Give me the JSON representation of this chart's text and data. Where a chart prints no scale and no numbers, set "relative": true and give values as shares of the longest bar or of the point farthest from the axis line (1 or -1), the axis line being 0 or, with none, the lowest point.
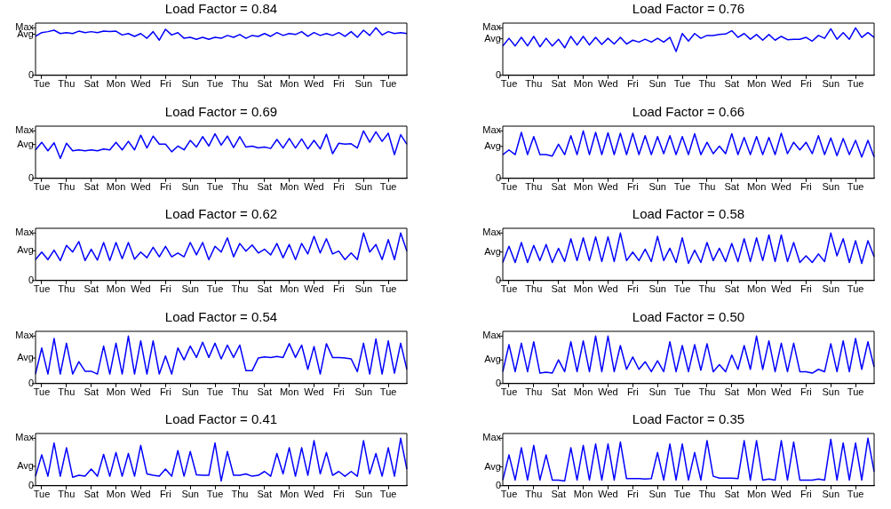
{
  "chart_data": [
    {
      "type": "line",
      "title": "Load Factor = 0.84",
      "color": "#0000ff",
      "relative": true,
      "legend": false,
      "annotations": [
        "0",
        "Avg",
        "Max"
      ],
      "categories": [
        null,
        "Tue",
        null,
        null,
        null,
        "Thu",
        null,
        null,
        null,
        "Sat",
        null,
        null,
        null,
        "Mon",
        null,
        null,
        null,
        "Wed",
        null,
        null,
        null,
        "Fri",
        null,
        null,
        null,
        "Sun",
        null,
        null,
        null,
        "Tue",
        null,
        null,
        null,
        "Thu",
        null,
        null,
        null,
        "Sat",
        null,
        null,
        null,
        "Mon",
        null,
        null,
        null,
        "Wed",
        null,
        null,
        null,
        "Fri",
        null,
        null,
        null,
        "Sun",
        null,
        null,
        null,
        "Tue",
        null,
        null,
        null
      ],
      "values": [
        0.82,
        0.9,
        0.92,
        0.95,
        0.88,
        0.9,
        0.88,
        0.93,
        0.9,
        0.92,
        0.9,
        0.93,
        0.92,
        0.93,
        0.85,
        0.88,
        0.82,
        0.88,
        0.78,
        0.92,
        0.74,
        0.97,
        0.85,
        0.9,
        0.78,
        0.8,
        0.76,
        0.8,
        0.76,
        0.8,
        0.78,
        0.84,
        0.8,
        0.86,
        0.78,
        0.84,
        0.82,
        0.88,
        0.82,
        0.9,
        0.84,
        0.88,
        0.86,
        0.92,
        0.82,
        0.9,
        0.84,
        0.88,
        0.84,
        0.9,
        0.82,
        0.92,
        0.8,
        0.95,
        0.84,
        1.0,
        0.85,
        0.92,
        0.88,
        0.9,
        0.88
      ]
    },
    {
      "type": "line",
      "title": "Load Factor = 0.76",
      "color": "#0000ff",
      "relative": true,
      "legend": false,
      "annotations": [
        "0",
        "Avg",
        "Max"
      ],
      "categories": [
        null,
        "Tue",
        null,
        null,
        null,
        "Thu",
        null,
        null,
        null,
        "Sat",
        null,
        null,
        null,
        "Mon",
        null,
        null,
        null,
        "Wed",
        null,
        null,
        null,
        "Fri",
        null,
        null,
        null,
        "Sun",
        null,
        null,
        null,
        "Tue",
        null,
        null,
        null,
        "Thu",
        null,
        null,
        null,
        "Sat",
        null,
        null,
        null,
        "Mon",
        null,
        null,
        null,
        "Wed",
        null,
        null,
        null,
        "Fri",
        null,
        null,
        null,
        "Sun",
        null,
        null,
        null,
        "Tue",
        null,
        null,
        null
      ],
      "values": [
        0.62,
        0.78,
        0.62,
        0.8,
        0.62,
        0.82,
        0.6,
        0.78,
        0.62,
        0.76,
        0.58,
        0.82,
        0.64,
        0.82,
        0.64,
        0.8,
        0.65,
        0.78,
        0.66,
        0.8,
        0.66,
        0.74,
        0.7,
        0.76,
        0.7,
        0.78,
        0.7,
        0.8,
        0.5,
        0.88,
        0.72,
        0.88,
        0.78,
        0.84,
        0.84,
        0.86,
        0.87,
        0.94,
        0.8,
        0.88,
        0.76,
        0.86,
        0.74,
        0.86,
        0.74,
        0.82,
        0.75,
        0.76,
        0.76,
        0.8,
        0.72,
        0.84,
        0.78,
        0.98,
        0.76,
        0.9,
        0.76,
        1.0,
        0.8,
        0.9,
        0.8
      ]
    },
    {
      "type": "line",
      "title": "Load Factor = 0.69",
      "color": "#0000ff",
      "relative": true,
      "legend": false,
      "annotations": [
        "0",
        "Avg",
        "Max"
      ],
      "categories": [
        null,
        "Tue",
        null,
        null,
        null,
        "Thu",
        null,
        null,
        null,
        "Sat",
        null,
        null,
        null,
        "Mon",
        null,
        null,
        null,
        "Wed",
        null,
        null,
        null,
        "Fri",
        null,
        null,
        null,
        "Sun",
        null,
        null,
        null,
        "Tue",
        null,
        null,
        null,
        "Thu",
        null,
        null,
        null,
        "Sat",
        null,
        null,
        null,
        "Mon",
        null,
        null,
        null,
        "Wed",
        null,
        null,
        null,
        "Fri",
        null,
        null,
        null,
        "Sun",
        null,
        null,
        null,
        "Tue",
        null,
        null,
        null
      ],
      "values": [
        0.6,
        0.76,
        0.58,
        0.75,
        0.42,
        0.74,
        0.58,
        0.6,
        0.58,
        0.6,
        0.58,
        0.62,
        0.6,
        0.76,
        0.6,
        0.78,
        0.6,
        0.91,
        0.64,
        0.89,
        0.72,
        0.72,
        0.56,
        0.68,
        0.6,
        0.8,
        0.66,
        0.88,
        0.68,
        0.94,
        0.7,
        0.89,
        0.65,
        0.88,
        0.66,
        0.68,
        0.64,
        0.66,
        0.63,
        0.82,
        0.64,
        0.84,
        0.64,
        0.83,
        0.62,
        0.8,
        0.62,
        0.93,
        0.52,
        0.74,
        0.72,
        0.73,
        0.64,
        1.0,
        0.76,
        0.98,
        0.78,
        0.95,
        0.5,
        0.92,
        0.72
      ]
    },
    {
      "type": "line",
      "title": "Load Factor = 0.66",
      "color": "#0000ff",
      "relative": true,
      "legend": false,
      "annotations": [
        "0",
        "Avg",
        "Max"
      ],
      "categories": [
        null,
        "Tue",
        null,
        null,
        null,
        "Thu",
        null,
        null,
        null,
        "Sat",
        null,
        null,
        null,
        "Mon",
        null,
        null,
        null,
        "Wed",
        null,
        null,
        null,
        "Fri",
        null,
        null,
        null,
        "Sun",
        null,
        null,
        null,
        "Tue",
        null,
        null,
        null,
        "Thu",
        null,
        null,
        null,
        "Sat",
        null,
        null,
        null,
        "Mon",
        null,
        null,
        null,
        "Wed",
        null,
        null,
        null,
        "Fri",
        null,
        null,
        null,
        "Sun",
        null,
        null,
        null,
        "Tue",
        null,
        null,
        null
      ],
      "values": [
        0.5,
        0.6,
        0.5,
        0.97,
        0.5,
        0.88,
        0.5,
        0.5,
        0.47,
        0.72,
        0.5,
        0.9,
        0.5,
        1.0,
        0.5,
        0.97,
        0.5,
        0.96,
        0.5,
        0.95,
        0.5,
        0.95,
        0.5,
        0.9,
        0.5,
        0.88,
        0.52,
        0.9,
        0.5,
        0.88,
        0.5,
        0.94,
        0.5,
        0.76,
        0.52,
        0.68,
        0.52,
        0.94,
        0.5,
        0.86,
        0.5,
        0.88,
        0.5,
        0.86,
        0.5,
        0.95,
        0.52,
        0.76,
        0.6,
        0.76,
        0.52,
        0.9,
        0.5,
        0.85,
        0.48,
        0.84,
        0.5,
        0.8,
        0.45,
        0.8,
        0.45
      ]
    },
    {
      "type": "line",
      "title": "Load Factor = 0.62",
      "color": "#0000ff",
      "relative": true,
      "legend": false,
      "annotations": [
        "0",
        "Avg",
        "Max"
      ],
      "categories": [
        null,
        "Tue",
        null,
        null,
        null,
        "Thu",
        null,
        null,
        null,
        "Sat",
        null,
        null,
        null,
        "Mon",
        null,
        null,
        null,
        "Wed",
        null,
        null,
        null,
        "Fri",
        null,
        null,
        null,
        "Sun",
        null,
        null,
        null,
        "Tue",
        null,
        null,
        null,
        "Thu",
        null,
        null,
        null,
        "Sat",
        null,
        null,
        null,
        "Mon",
        null,
        null,
        null,
        "Wed",
        null,
        null,
        null,
        "Fri",
        null,
        null,
        null,
        "Sun",
        null,
        null,
        null,
        "Tue",
        null,
        null,
        null
      ],
      "values": [
        0.44,
        0.6,
        0.44,
        0.64,
        0.42,
        0.74,
        0.6,
        0.82,
        0.42,
        0.66,
        0.43,
        0.8,
        0.42,
        0.8,
        0.46,
        0.8,
        0.45,
        0.6,
        0.48,
        0.7,
        0.5,
        0.72,
        0.5,
        0.58,
        0.5,
        0.8,
        0.54,
        0.8,
        0.44,
        0.72,
        0.6,
        0.9,
        0.5,
        0.78,
        0.62,
        0.75,
        0.58,
        0.66,
        0.54,
        0.78,
        0.48,
        0.76,
        0.44,
        0.78,
        0.56,
        0.93,
        0.58,
        0.88,
        0.56,
        0.62,
        0.44,
        0.58,
        0.44,
        1.0,
        0.6,
        0.76,
        0.44,
        0.86,
        0.44,
        1.0,
        0.62
      ]
    },
    {
      "type": "line",
      "title": "Load Factor = 0.58",
      "color": "#0000ff",
      "relative": true,
      "legend": false,
      "annotations": [
        "0",
        "Avg",
        "Max"
      ],
      "categories": [
        null,
        "Tue",
        null,
        null,
        null,
        "Thu",
        null,
        null,
        null,
        "Sat",
        null,
        null,
        null,
        "Mon",
        null,
        null,
        null,
        "Wed",
        null,
        null,
        null,
        "Fri",
        null,
        null,
        null,
        "Sun",
        null,
        null,
        null,
        "Tue",
        null,
        null,
        null,
        "Thu",
        null,
        null,
        null,
        "Sat",
        null,
        null,
        null,
        "Mon",
        null,
        null,
        null,
        "Wed",
        null,
        null,
        null,
        "Fri",
        null,
        null,
        null,
        "Sun",
        null,
        null,
        null,
        "Tue",
        null,
        null,
        null
      ],
      "values": [
        0.38,
        0.72,
        0.38,
        0.8,
        0.38,
        0.74,
        0.42,
        0.76,
        0.38,
        0.68,
        0.4,
        0.88,
        0.42,
        0.9,
        0.42,
        0.92,
        0.4,
        0.92,
        0.4,
        1.0,
        0.42,
        0.6,
        0.42,
        0.66,
        0.4,
        0.93,
        0.42,
        0.68,
        0.38,
        0.9,
        0.36,
        0.64,
        0.38,
        0.8,
        0.42,
        0.68,
        0.4,
        0.78,
        0.4,
        0.88,
        0.4,
        0.9,
        0.42,
        0.96,
        0.4,
        0.96,
        0.4,
        0.8,
        0.38,
        0.52,
        0.38,
        0.56,
        0.4,
        1.0,
        0.52,
        0.88,
        0.38,
        0.84,
        0.36,
        0.84,
        0.5
      ]
    },
    {
      "type": "line",
      "title": "Load Factor = 0.54",
      "color": "#0000ff",
      "relative": true,
      "legend": false,
      "annotations": [
        "0",
        "Avg",
        "Max"
      ],
      "categories": [
        null,
        "Tue",
        null,
        null,
        null,
        "Thu",
        null,
        null,
        null,
        "Sat",
        null,
        null,
        null,
        "Mon",
        null,
        null,
        null,
        "Wed",
        null,
        null,
        null,
        "Fri",
        null,
        null,
        null,
        "Sun",
        null,
        null,
        null,
        "Tue",
        null,
        null,
        null,
        "Thu",
        null,
        null,
        null,
        "Sat",
        null,
        null,
        null,
        "Mon",
        null,
        null,
        null,
        "Wed",
        null,
        null,
        null,
        "Fri",
        null,
        null,
        null,
        "Sun",
        null,
        null,
        null,
        "Tue",
        null,
        null,
        null
      ],
      "values": [
        0.2,
        0.75,
        0.2,
        0.95,
        0.2,
        0.85,
        0.2,
        0.46,
        0.26,
        0.26,
        0.2,
        0.79,
        0.2,
        0.85,
        0.2,
        1.0,
        0.2,
        0.9,
        0.2,
        0.9,
        0.2,
        0.58,
        0.2,
        0.75,
        0.5,
        0.79,
        0.55,
        0.87,
        0.55,
        0.85,
        0.52,
        0.81,
        0.55,
        0.81,
        0.27,
        0.27,
        0.54,
        0.56,
        0.55,
        0.57,
        0.55,
        0.84,
        0.55,
        0.81,
        0.3,
        0.78,
        0.2,
        0.84,
        0.55,
        0.55,
        0.54,
        0.52,
        0.25,
        0.85,
        0.2,
        0.94,
        0.2,
        0.9,
        0.22,
        0.85,
        0.3
      ]
    },
    {
      "type": "line",
      "title": "Load Factor = 0.50",
      "color": "#0000ff",
      "relative": true,
      "legend": false,
      "annotations": [
        "0",
        "Avg",
        "Max"
      ],
      "categories": [
        null,
        "Tue",
        null,
        null,
        null,
        "Thu",
        null,
        null,
        null,
        "Sat",
        null,
        null,
        null,
        "Mon",
        null,
        null,
        null,
        "Wed",
        null,
        null,
        null,
        "Fri",
        null,
        null,
        null,
        "Sun",
        null,
        null,
        null,
        "Tue",
        null,
        null,
        null,
        "Thu",
        null,
        null,
        null,
        "Sat",
        null,
        null,
        null,
        "Mon",
        null,
        null,
        null,
        "Wed",
        null,
        null,
        null,
        "Fri",
        null,
        null,
        null,
        "Sun",
        null,
        null,
        null,
        "Tue",
        null,
        null,
        null
      ],
      "values": [
        0.25,
        0.82,
        0.25,
        0.85,
        0.25,
        0.88,
        0.22,
        0.24,
        0.22,
        0.5,
        0.25,
        0.88,
        0.25,
        0.9,
        0.25,
        1.0,
        0.25,
        1.0,
        0.25,
        0.8,
        0.3,
        0.56,
        0.3,
        0.46,
        0.25,
        0.48,
        0.25,
        0.88,
        0.25,
        0.8,
        0.25,
        0.82,
        0.28,
        0.84,
        0.25,
        0.4,
        0.25,
        0.6,
        0.3,
        0.8,
        0.3,
        1.0,
        0.3,
        0.9,
        0.25,
        0.85,
        0.25,
        0.85,
        0.25,
        0.25,
        0.22,
        0.3,
        0.25,
        0.84,
        0.25,
        0.9,
        0.25,
        0.95,
        0.3,
        0.88,
        0.35
      ]
    },
    {
      "type": "line",
      "title": "Load Factor = 0.41",
      "color": "#0000ff",
      "relative": true,
      "legend": false,
      "annotations": [
        "0",
        "Avg",
        "Max"
      ],
      "categories": [
        null,
        "Tue",
        null,
        null,
        null,
        "Thu",
        null,
        null,
        null,
        "Sat",
        null,
        null,
        null,
        "Mon",
        null,
        null,
        null,
        "Wed",
        null,
        null,
        null,
        "Fri",
        null,
        null,
        null,
        "Sun",
        null,
        null,
        null,
        "Tue",
        null,
        null,
        null,
        "Thu",
        null,
        null,
        null,
        "Sat",
        null,
        null,
        null,
        "Mon",
        null,
        null,
        null,
        "Wed",
        null,
        null,
        null,
        "Fri",
        null,
        null,
        null,
        "Sun",
        null,
        null,
        null,
        "Tue",
        null,
        null,
        null
      ],
      "values": [
        0.2,
        0.65,
        0.2,
        0.9,
        0.2,
        0.8,
        0.18,
        0.22,
        0.2,
        0.35,
        0.2,
        0.66,
        0.2,
        0.7,
        0.2,
        0.68,
        0.2,
        0.85,
        0.25,
        0.22,
        0.2,
        0.35,
        0.2,
        0.74,
        0.2,
        0.72,
        0.23,
        0.22,
        0.22,
        0.9,
        0.1,
        0.72,
        0.22,
        0.22,
        0.25,
        0.2,
        0.22,
        0.3,
        0.2,
        0.68,
        0.25,
        0.8,
        0.2,
        0.8,
        0.22,
        0.95,
        0.25,
        0.7,
        0.22,
        0.3,
        0.2,
        0.3,
        0.2,
        0.95,
        0.25,
        0.68,
        0.2,
        0.8,
        0.2,
        1.0,
        0.35
      ]
    },
    {
      "type": "line",
      "title": "Load Factor = 0.35",
      "color": "#0000ff",
      "relative": true,
      "legend": false,
      "annotations": [
        "0",
        "Avg",
        "Max"
      ],
      "categories": [
        null,
        "Tue",
        null,
        null,
        null,
        "Thu",
        null,
        null,
        null,
        "Sat",
        null,
        null,
        null,
        "Mon",
        null,
        null,
        null,
        "Wed",
        null,
        null,
        null,
        "Fri",
        null,
        null,
        null,
        "Sun",
        null,
        null,
        null,
        "Tue",
        null,
        null,
        null,
        "Thu",
        null,
        null,
        null,
        "Sat",
        null,
        null,
        null,
        "Mon",
        null,
        null,
        null,
        "Wed",
        null,
        null,
        null,
        "Fri",
        null,
        null,
        null,
        "Sun",
        null,
        null,
        null,
        "Tue",
        null,
        null,
        null
      ],
      "values": [
        0.12,
        0.65,
        0.12,
        0.8,
        0.12,
        0.85,
        0.12,
        0.65,
        0.12,
        0.12,
        0.1,
        0.8,
        0.12,
        0.85,
        0.12,
        0.88,
        0.12,
        0.88,
        0.12,
        0.92,
        0.15,
        0.15,
        0.15,
        0.14,
        0.15,
        0.7,
        0.12,
        0.88,
        0.12,
        0.88,
        0.12,
        0.7,
        0.12,
        0.95,
        0.2,
        0.16,
        0.16,
        0.16,
        0.15,
        0.95,
        0.12,
        0.95,
        0.12,
        0.14,
        0.12,
        0.95,
        0.12,
        0.92,
        0.12,
        0.12,
        0.12,
        0.14,
        0.12,
        0.98,
        0.12,
        0.9,
        0.12,
        0.9,
        0.12,
        1.0,
        0.3
      ]
    }
  ]
}
